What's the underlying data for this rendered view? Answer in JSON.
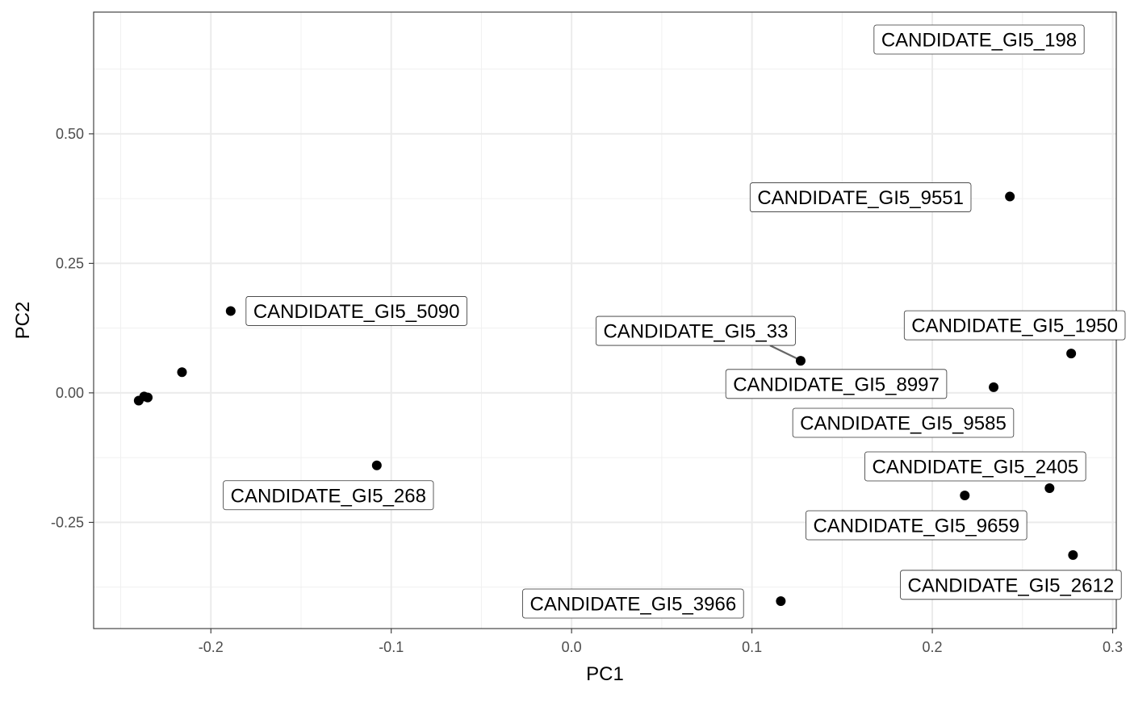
{
  "chart_data": {
    "type": "scatter",
    "title": "",
    "xlabel": "PC1",
    "ylabel": "PC2",
    "xlim": [
      -0.265,
      0.302
    ],
    "ylim": [
      -0.455,
      0.735
    ],
    "x_ticks": [
      -0.2,
      -0.1,
      0.0,
      0.1,
      0.2,
      0.3
    ],
    "x_tick_labels": [
      "-0.2",
      "-0.1",
      "0.0",
      "0.1",
      "0.2",
      "0.3"
    ],
    "y_ticks": [
      -0.25,
      0.0,
      0.25,
      0.5
    ],
    "y_tick_labels": [
      "-0.25",
      "0.00",
      "0.25",
      "0.50"
    ],
    "grid": true,
    "legend": "none",
    "point_color": "#000000",
    "points": [
      {
        "x": -0.24,
        "y": -0.015,
        "label": ""
      },
      {
        "x": -0.237,
        "y": -0.007,
        "label": ""
      },
      {
        "x": -0.235,
        "y": -0.009,
        "label": ""
      },
      {
        "x": -0.216,
        "y": 0.04,
        "label": ""
      },
      {
        "x": -0.189,
        "y": 0.158,
        "label": "CANDIDATE_GI5_5090"
      },
      {
        "x": -0.108,
        "y": -0.14,
        "label": "CANDIDATE_GI5_268"
      },
      {
        "x": 0.116,
        "y": -0.402,
        "label": "CANDIDATE_GI5_3966"
      },
      {
        "x": 0.127,
        "y": 0.062,
        "label": "CANDIDATE_GI5_33"
      },
      {
        "x": 0.218,
        "y": -0.198,
        "label": "CANDIDATE_GI5_9659"
      },
      {
        "x": 0.234,
        "y": 0.011,
        "label": "CANDIDATE_GI5_8997"
      },
      {
        "x": 0.243,
        "y": 0.379,
        "label": "CANDIDATE_GI5_9551"
      },
      {
        "x": 0.265,
        "y": -0.184,
        "label": "CANDIDATE_GI5_2405"
      },
      {
        "x": 0.277,
        "y": 0.076,
        "label": "CANDIDATE_GI5_1950"
      },
      {
        "x": 0.278,
        "y": -0.313,
        "label": "CANDIDATE_GI5_2612"
      }
    ],
    "unplaced_labels": [
      "CANDIDATE_GI5_198",
      "CANDIDATE_GI5_9585"
    ]
  }
}
